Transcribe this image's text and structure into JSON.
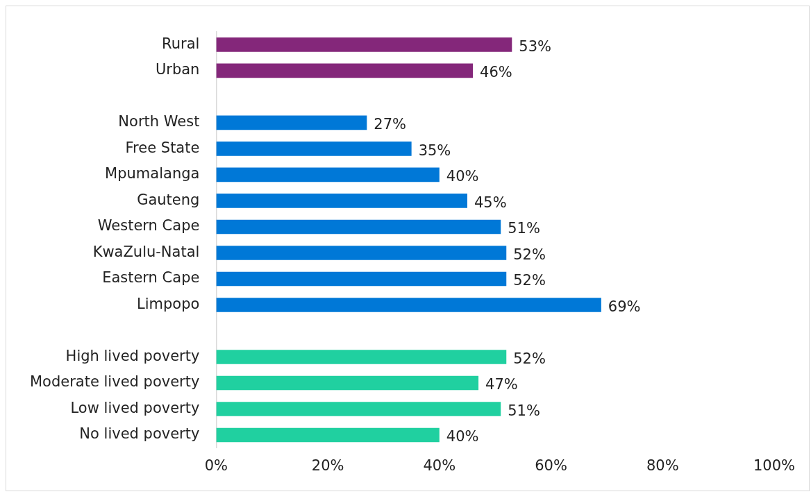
{
  "chart_data": {
    "type": "bar",
    "orientation": "horizontal",
    "categories": [
      "Rural",
      "Urban",
      null,
      "North West",
      "Free State",
      "Mpumalanga",
      "Gauteng",
      "Western Cape",
      "KwaZulu-Natal",
      "Eastern Cape",
      "Limpopo",
      null,
      "High lived poverty",
      "Moderate lived poverty",
      "Low lived poverty",
      "No lived poverty"
    ],
    "values": [
      53,
      46,
      null,
      27,
      35,
      40,
      45,
      51,
      52,
      52,
      69,
      null,
      52,
      47,
      51,
      40
    ],
    "value_labels": [
      "53%",
      "46%",
      null,
      "27%",
      "35%",
      "40%",
      "45%",
      "51%",
      "52%",
      "52%",
      "69%",
      null,
      "52%",
      "47%",
      "51%",
      "40%"
    ],
    "colors": [
      "#84277a",
      "#84277a",
      null,
      "#0078d7",
      "#0078d7",
      "#0078d7",
      "#0078d7",
      "#0078d7",
      "#0078d7",
      "#0078d7",
      "#0078d7",
      null,
      "#20d0a0",
      "#20d0a0",
      "#20d0a0",
      "#20d0a0"
    ],
    "xlim": [
      0,
      100
    ],
    "xticks": [
      {
        "value": 0,
        "label": "0%"
      },
      {
        "value": 20,
        "label": "20%"
      },
      {
        "value": 40,
        "label": "40%"
      },
      {
        "value": 60,
        "label": "60%"
      },
      {
        "value": 80,
        "label": "80%"
      },
      {
        "value": 100,
        "label": "100%"
      }
    ],
    "grid": false,
    "legend": false
  }
}
